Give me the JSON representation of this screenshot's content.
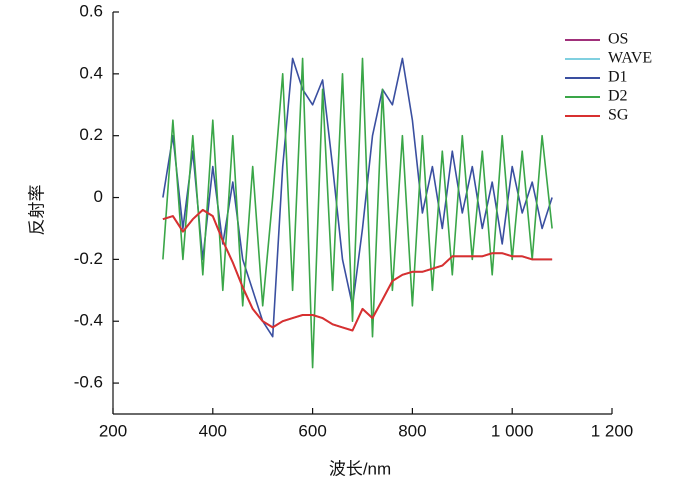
{
  "chart_data": {
    "type": "line",
    "x_label": "波长/nm",
    "y_label": "反射率",
    "x": [
      300,
      320,
      340,
      360,
      380,
      400,
      420,
      440,
      460,
      480,
      500,
      520,
      540,
      560,
      580,
      600,
      620,
      640,
      660,
      680,
      700,
      720,
      740,
      760,
      780,
      800,
      820,
      840,
      860,
      880,
      900,
      920,
      940,
      960,
      980,
      1000,
      1020,
      1040,
      1060,
      1080
    ],
    "series": [
      {
        "name": "OS",
        "color": "#a0307a",
        "values": [
          -0.07,
          -0.06,
          -0.11,
          -0.07,
          -0.04,
          -0.06,
          -0.14,
          -0.21,
          -0.29,
          -0.36,
          -0.4,
          -0.42,
          -0.4,
          -0.39,
          -0.38,
          -0.38,
          -0.39,
          -0.41,
          -0.42,
          -0.43,
          -0.36,
          -0.39,
          -0.33,
          -0.27,
          -0.25,
          -0.24,
          -0.24,
          -0.23,
          -0.22,
          -0.19,
          -0.19,
          -0.19,
          -0.19,
          -0.18,
          -0.18,
          -0.19,
          -0.19,
          -0.2,
          -0.2,
          -0.2
        ]
      },
      {
        "name": "WAVE",
        "color": "#80d0e0",
        "values": [
          -0.07,
          -0.06,
          -0.11,
          -0.07,
          -0.04,
          -0.06,
          -0.14,
          -0.21,
          -0.29,
          -0.36,
          -0.4,
          -0.42,
          -0.4,
          -0.39,
          -0.38,
          -0.38,
          -0.39,
          -0.41,
          -0.42,
          -0.43,
          -0.36,
          -0.39,
          -0.33,
          -0.27,
          -0.25,
          -0.24,
          -0.24,
          -0.23,
          -0.22,
          -0.19,
          -0.19,
          -0.19,
          -0.19,
          -0.18,
          -0.18,
          -0.19,
          -0.19,
          -0.2,
          -0.2,
          -0.2
        ]
      },
      {
        "name": "D1",
        "color": "#3a4fa0",
        "values": [
          0.0,
          0.2,
          -0.1,
          0.15,
          -0.2,
          0.1,
          -0.15,
          0.05,
          -0.2,
          -0.3,
          -0.4,
          -0.45,
          0.1,
          0.45,
          0.35,
          0.3,
          0.38,
          0.1,
          -0.2,
          -0.35,
          -0.1,
          0.2,
          0.35,
          0.3,
          0.45,
          0.25,
          -0.05,
          0.1,
          -0.1,
          0.15,
          -0.05,
          0.1,
          -0.1,
          0.05,
          -0.15,
          0.1,
          -0.05,
          0.05,
          -0.1,
          0.0
        ]
      },
      {
        "name": "D2",
        "color": "#3aa648",
        "values": [
          -0.2,
          0.25,
          -0.2,
          0.2,
          -0.25,
          0.25,
          -0.3,
          0.2,
          -0.35,
          0.1,
          -0.35,
          0.0,
          0.4,
          -0.3,
          0.45,
          -0.55,
          0.35,
          -0.3,
          0.4,
          -0.4,
          0.45,
          -0.45,
          0.35,
          -0.3,
          0.2,
          -0.35,
          0.2,
          -0.3,
          0.15,
          -0.25,
          0.2,
          -0.2,
          0.15,
          -0.25,
          0.2,
          -0.2,
          0.15,
          -0.2,
          0.2,
          -0.1
        ]
      },
      {
        "name": "SG",
        "color": "#d83030",
        "values": [
          -0.07,
          -0.06,
          -0.11,
          -0.07,
          -0.04,
          -0.06,
          -0.14,
          -0.21,
          -0.29,
          -0.36,
          -0.4,
          -0.42,
          -0.4,
          -0.39,
          -0.38,
          -0.38,
          -0.39,
          -0.41,
          -0.42,
          -0.43,
          -0.36,
          -0.39,
          -0.33,
          -0.27,
          -0.25,
          -0.24,
          -0.24,
          -0.23,
          -0.22,
          -0.19,
          -0.19,
          -0.19,
          -0.19,
          -0.18,
          -0.18,
          -0.19,
          -0.19,
          -0.2,
          -0.2,
          -0.2
        ]
      }
    ],
    "xlim": [
      200,
      1200
    ],
    "xticks": [
      200,
      400,
      600,
      800,
      {
        "value": 1000,
        "label": "1 000"
      },
      {
        "value": 1200,
        "label": "1 200"
      }
    ],
    "ylim": [
      -0.7,
      0.6
    ],
    "yticks": [
      -0.6,
      -0.4,
      -0.2,
      0,
      0.2,
      0.4,
      0.6
    ],
    "legend": "upper right"
  }
}
